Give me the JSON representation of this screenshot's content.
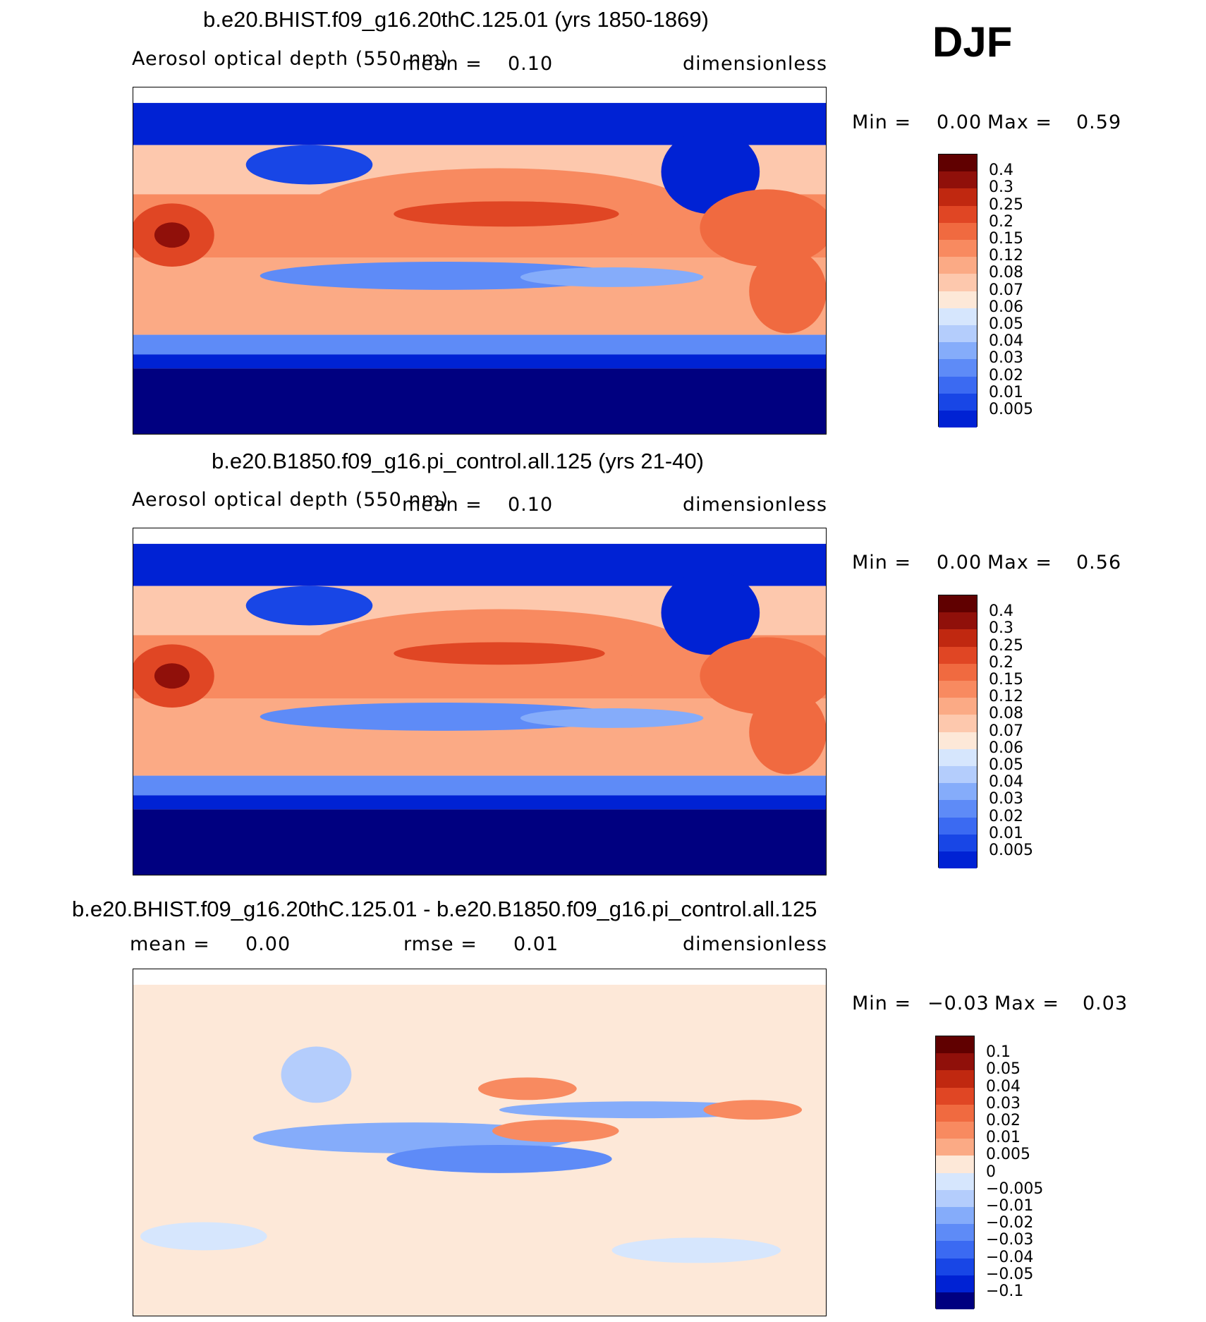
{
  "season": "DJF",
  "colors": {
    "blues": [
      "#000080",
      "#0000b8",
      "#0022d4",
      "#1846e6",
      "#3b6af2",
      "#5e8bf7",
      "#85acfa",
      "#b4cdfc",
      "#d6e6fd"
    ],
    "pale": "#fde8d8",
    "reds": [
      "#fdc8ad",
      "#fbaa85",
      "#f88a60",
      "#f06a40",
      "#e04624",
      "#c02810",
      "#90100a",
      "#600000"
    ],
    "land_line": "#000000"
  },
  "panels": [
    {
      "title": "b.e20.BHIST.f09_g16.20thC.125.01 (yrs 1850-1869)",
      "variable": "Aerosol optical depth (550 nm)",
      "mean_label": "mean =",
      "mean_value": "0.10",
      "units": "dimensionless",
      "min_label": "Min =",
      "min_value": "0.00",
      "max_label": "Max =",
      "max_value": "0.59",
      "colorbar": [
        "0.4",
        "0.3",
        "0.25",
        "0.2",
        "0.15",
        "0.12",
        "0.08",
        "0.07",
        "0.06",
        "0.05",
        "0.04",
        "0.03",
        "0.02",
        "0.01",
        "0.005"
      ]
    },
    {
      "title": "b.e20.B1850.f09_g16.pi_control.all.125 (yrs 21-40)",
      "variable": "Aerosol optical depth (550 nm)",
      "mean_label": "mean =",
      "mean_value": "0.10",
      "units": "dimensionless",
      "min_label": "Min =",
      "min_value": "0.00",
      "max_label": "Max =",
      "max_value": "0.56",
      "colorbar": [
        "0.4",
        "0.3",
        "0.25",
        "0.2",
        "0.15",
        "0.12",
        "0.08",
        "0.07",
        "0.06",
        "0.05",
        "0.04",
        "0.03",
        "0.02",
        "0.01",
        "0.005"
      ]
    },
    {
      "title": "b.e20.BHIST.f09_g16.20thC.125.01 - b.e20.B1850.f09_g16.pi_control.all.125",
      "mean_label": "mean =",
      "mean_value": "0.00",
      "rmse_label": "rmse =",
      "rmse_value": "0.01",
      "units": "dimensionless",
      "min_label": "Min =",
      "min_value": "−0.03",
      "max_label": "Max =",
      "max_value": "0.03",
      "colorbar": [
        "0.1",
        "0.05",
        "0.04",
        "0.03",
        "0.02",
        "0.01",
        "0.005",
        "0",
        "−0.005",
        "−0.01",
        "−0.02",
        "−0.03",
        "−0.04",
        "−0.05",
        "−0.1"
      ]
    }
  ],
  "chart_data": {
    "type": "heatmap",
    "map_projection": "global cylindrical equidistant, centered on the Pacific",
    "colormap_top_to_bottom": [
      "darkest red",
      "...",
      "white",
      "...",
      "darkest blue"
    ]
  }
}
